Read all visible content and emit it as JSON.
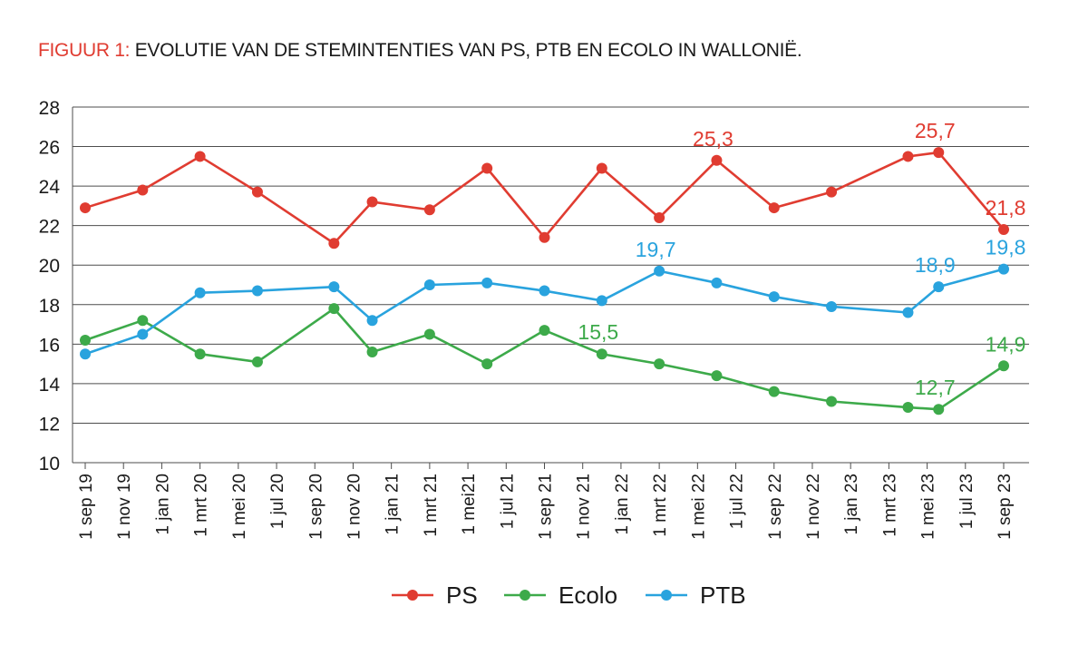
{
  "title_prefix": "FIGUUR 1:",
  "title_text": "EVOLUTIE VAN DE STEMINTENTIES VAN PS, PTB EN ECOLO IN WALLONIË.",
  "chart_data": {
    "type": "line",
    "x": [
      "1 sep 19",
      "1 nov 19",
      "1 jan 20",
      "1 mrt 20",
      "1 mei 20",
      "1 jul 20",
      "1 sep 20",
      "1 nov 20",
      "1 jan 21",
      "1 mrt 21",
      "1 mei21",
      "1 jul 21",
      "1 sep 21",
      "1 nov 21",
      "1 jan 22",
      "1 mrt 22",
      "1 mei 22",
      "1 jul 22",
      "1 sep 22",
      "1 nov 22",
      "1 jan 23",
      "1 mrt 23",
      "1 mei 23",
      "1 jul 23",
      "1 sep 23"
    ],
    "ylim": [
      10,
      28
    ],
    "yticks": [
      10,
      12,
      14,
      16,
      18,
      20,
      22,
      24,
      26,
      28
    ],
    "grid": true,
    "legend_position": "bottom-center",
    "series": [
      {
        "name": "PS",
        "color": "#e03c31",
        "points": [
          [
            0,
            22.9
          ],
          [
            1.5,
            23.8
          ],
          [
            3,
            25.5
          ],
          [
            4.5,
            23.7
          ],
          [
            6.5,
            21.1
          ],
          [
            7.5,
            23.2
          ],
          [
            9,
            22.8
          ],
          [
            10.5,
            24.9
          ],
          [
            12,
            21.4
          ],
          [
            13.5,
            24.9
          ],
          [
            15,
            22.4
          ],
          [
            16.5,
            25.3
          ],
          [
            18,
            22.9
          ],
          [
            19.5,
            23.7
          ],
          [
            21.5,
            25.5
          ],
          [
            22.3,
            25.7
          ],
          [
            24,
            21.8
          ]
        ],
        "labels": [
          {
            "i": 11,
            "text": "25,3"
          },
          {
            "i": 15,
            "text": "25,7"
          },
          {
            "i": 16,
            "text": "21,8"
          }
        ]
      },
      {
        "name": "Ecolo",
        "color": "#3daa4a",
        "points": [
          [
            0,
            16.2
          ],
          [
            1.5,
            17.2
          ],
          [
            3,
            15.5
          ],
          [
            4.5,
            15.1
          ],
          [
            6.5,
            17.8
          ],
          [
            7.5,
            15.6
          ],
          [
            9,
            16.5
          ],
          [
            10.5,
            15.0
          ],
          [
            12,
            16.7
          ],
          [
            13.5,
            15.5
          ],
          [
            15,
            15.0
          ],
          [
            16.5,
            14.4
          ],
          [
            18,
            13.6
          ],
          [
            19.5,
            13.1
          ],
          [
            21.5,
            12.8
          ],
          [
            22.3,
            12.7
          ],
          [
            24,
            14.9
          ]
        ],
        "labels": [
          {
            "i": 9,
            "text": "15,5"
          },
          {
            "i": 15,
            "text": "12,7"
          },
          {
            "i": 16,
            "text": "14,9"
          }
        ]
      },
      {
        "name": "PTB",
        "color": "#29a3de",
        "points": [
          [
            0,
            15.5
          ],
          [
            1.5,
            16.5
          ],
          [
            3,
            18.6
          ],
          [
            4.5,
            18.7
          ],
          [
            6.5,
            18.9
          ],
          [
            7.5,
            17.2
          ],
          [
            9,
            19.0
          ],
          [
            10.5,
            19.1
          ],
          [
            12,
            18.7
          ],
          [
            13.5,
            18.2
          ],
          [
            15,
            19.7
          ],
          [
            16.5,
            19.1
          ],
          [
            18,
            18.4
          ],
          [
            19.5,
            17.9
          ],
          [
            21.5,
            17.6
          ],
          [
            22.3,
            18.9
          ],
          [
            24,
            19.8
          ]
        ],
        "labels": [
          {
            "i": 10,
            "text": "19,7"
          },
          {
            "i": 15,
            "text": "18,9"
          },
          {
            "i": 16,
            "text": "19,8"
          }
        ]
      }
    ]
  }
}
